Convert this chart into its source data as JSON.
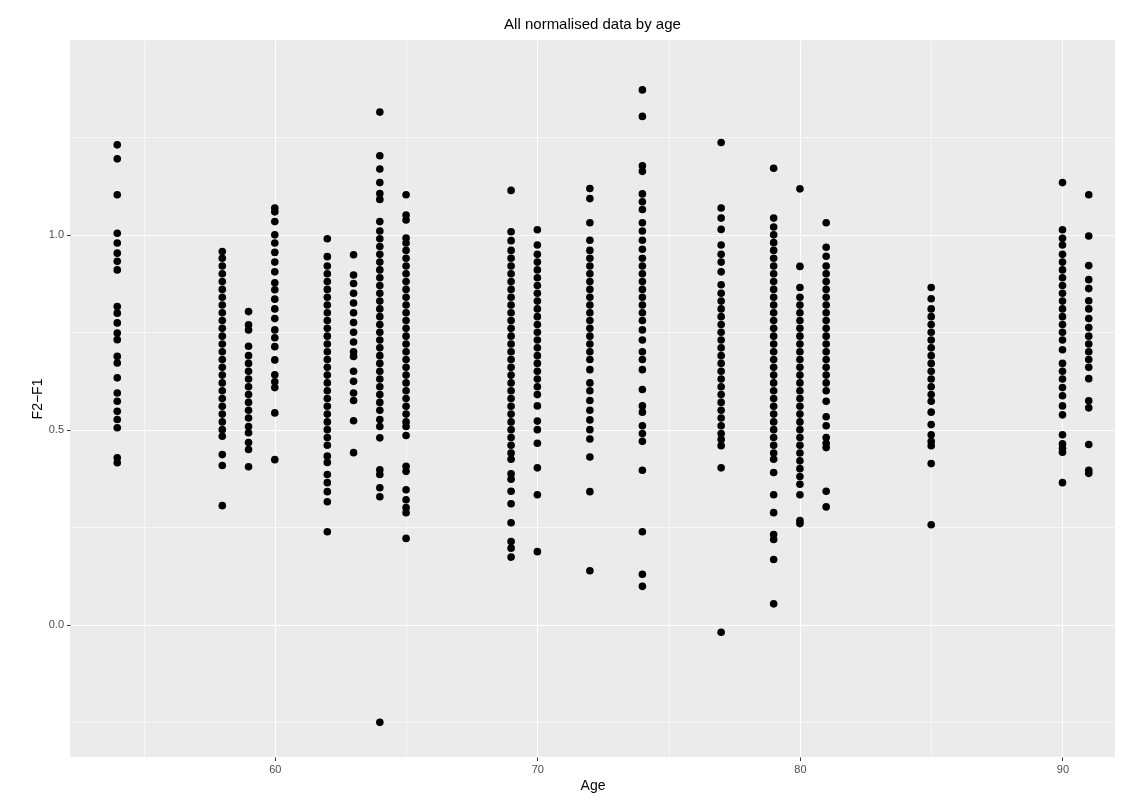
{
  "chart_data": {
    "type": "scatter",
    "title": "All normalised data by age",
    "xlabel": "Age",
    "ylabel": "F2−F1",
    "xlim": [
      52.2,
      92.0
    ],
    "ylim": [
      -0.34,
      1.5
    ],
    "xticks": [
      60,
      70,
      80,
      90
    ],
    "yticks": [
      {
        "value": 0,
        "label": "0.0"
      },
      0.5,
      {
        "value": 1,
        "label": "1.0"
      }
    ],
    "grid": true,
    "marker": "circle",
    "series": [
      {
        "color": "#000000",
        "x": [
          54,
          54,
          54,
          54,
          54,
          54,
          54,
          54,
          54,
          54,
          54,
          54,
          54,
          54,
          54,
          54,
          54,
          54,
          54,
          54,
          54,
          54,
          54
        ],
        "values": [
          1.231,
          1.195,
          1.103,
          1.004,
          0.979,
          0.953,
          0.932,
          0.91,
          0.816,
          0.799,
          0.774,
          0.748,
          0.731,
          0.688,
          0.671,
          0.633,
          0.594,
          0.573,
          0.547,
          0.526,
          0.505,
          0.428,
          0.415
        ]
      },
      {
        "color": "#000000",
        "x": [
          58,
          58,
          58,
          58,
          58,
          58,
          58,
          58,
          58,
          58,
          58,
          58,
          58,
          58,
          58,
          58,
          58,
          58,
          58,
          58,
          58,
          58,
          58,
          58,
          58,
          58,
          58,
          58
        ],
        "values": [
          0.957,
          0.94,
          0.92,
          0.9,
          0.88,
          0.86,
          0.84,
          0.82,
          0.8,
          0.78,
          0.76,
          0.74,
          0.72,
          0.7,
          0.68,
          0.66,
          0.64,
          0.62,
          0.6,
          0.58,
          0.56,
          0.54,
          0.52,
          0.5,
          0.483,
          0.436,
          0.408,
          0.305
        ]
      },
      {
        "color": "#000000",
        "x": [
          59,
          59,
          59,
          59,
          59,
          59,
          59,
          59,
          59,
          59,
          59,
          59,
          59,
          59,
          59,
          59,
          59,
          59
        ],
        "values": [
          0.803,
          0.769,
          0.756,
          0.714,
          0.69,
          0.67,
          0.65,
          0.63,
          0.61,
          0.59,
          0.57,
          0.55,
          0.53,
          0.508,
          0.492,
          0.467,
          0.449,
          0.405
        ]
      },
      {
        "color": "#000000",
        "x": [
          60,
          60,
          60,
          60,
          60,
          60,
          60,
          60,
          60,
          60,
          60,
          60,
          60,
          60,
          60,
          60,
          60,
          60,
          60,
          60,
          60,
          60
        ],
        "values": [
          1.069,
          1.059,
          1.034,
          1.0,
          0.979,
          0.955,
          0.93,
          0.905,
          0.877,
          0.859,
          0.835,
          0.81,
          0.785,
          0.756,
          0.736,
          0.713,
          0.679,
          0.641,
          0.623,
          0.608,
          0.543,
          0.423
        ]
      },
      {
        "color": "#000000",
        "x": [
          62,
          62,
          62,
          62,
          62,
          62,
          62,
          62,
          62,
          62,
          62,
          62,
          62,
          62,
          62,
          62,
          62,
          62,
          62,
          62,
          62,
          62,
          62,
          62,
          62,
          62,
          62,
          62,
          62,
          62,
          62,
          62,
          62
        ],
        "values": [
          0.99,
          0.944,
          0.92,
          0.9,
          0.88,
          0.86,
          0.84,
          0.82,
          0.8,
          0.78,
          0.76,
          0.74,
          0.72,
          0.7,
          0.68,
          0.66,
          0.64,
          0.62,
          0.6,
          0.58,
          0.56,
          0.54,
          0.52,
          0.5,
          0.48,
          0.46,
          0.432,
          0.416,
          0.385,
          0.364,
          0.341,
          0.315,
          0.238
        ]
      },
      {
        "color": "#000000",
        "x": [
          63,
          63,
          63,
          63,
          63,
          63,
          63,
          63,
          63,
          63,
          63,
          63,
          63,
          63,
          63,
          63,
          63
        ],
        "values": [
          0.949,
          0.897,
          0.875,
          0.85,
          0.825,
          0.8,
          0.775,
          0.75,
          0.725,
          0.7,
          0.688,
          0.65,
          0.624,
          0.594,
          0.575,
          0.523,
          0.441
        ]
      },
      {
        "color": "#000000",
        "x": [
          64,
          64,
          64,
          64,
          64,
          64,
          64,
          64,
          64,
          64,
          64,
          64,
          64,
          64,
          64,
          64,
          64,
          64,
          64,
          64,
          64,
          64,
          64,
          64,
          64,
          64,
          64,
          64,
          64,
          64,
          64,
          64,
          64,
          64,
          64,
          64,
          64,
          64,
          64
        ],
        "values": [
          1.315,
          1.203,
          1.169,
          1.134,
          1.106,
          1.091,
          1.034,
          1.01,
          0.99,
          0.97,
          0.95,
          0.93,
          0.91,
          0.89,
          0.87,
          0.85,
          0.83,
          0.81,
          0.79,
          0.77,
          0.75,
          0.73,
          0.71,
          0.69,
          0.67,
          0.65,
          0.63,
          0.61,
          0.59,
          0.57,
          0.55,
          0.526,
          0.508,
          0.479,
          0.397,
          0.385,
          0.351,
          0.328,
          -0.251
        ]
      },
      {
        "color": "#000000",
        "x": [
          65,
          65,
          65,
          65,
          65,
          65,
          65,
          65,
          65,
          65,
          65,
          65,
          65,
          65,
          65,
          65,
          65,
          65,
          65,
          65,
          65,
          65,
          65,
          65,
          65,
          65,
          65,
          65,
          65,
          65,
          65,
          65,
          65,
          65,
          65,
          65,
          65
        ],
        "values": [
          1.103,
          1.051,
          1.038,
          0.992,
          0.979,
          0.96,
          0.94,
          0.92,
          0.9,
          0.88,
          0.86,
          0.84,
          0.82,
          0.8,
          0.78,
          0.76,
          0.74,
          0.72,
          0.7,
          0.68,
          0.66,
          0.64,
          0.62,
          0.6,
          0.58,
          0.56,
          0.54,
          0.52,
          0.508,
          0.485,
          0.406,
          0.393,
          0.346,
          0.32,
          0.3,
          0.287,
          0.221
        ]
      },
      {
        "color": "#000000",
        "x": [
          69,
          69,
          69,
          69,
          69,
          69,
          69,
          69,
          69,
          69,
          69,
          69,
          69,
          69,
          69,
          69,
          69,
          69,
          69,
          69,
          69,
          69,
          69,
          69,
          69,
          69,
          69,
          69,
          69,
          69,
          69,
          69,
          69,
          69,
          69,
          69,
          69,
          69,
          69
        ],
        "values": [
          1.114,
          1.008,
          0.985,
          0.96,
          0.94,
          0.92,
          0.9,
          0.88,
          0.86,
          0.84,
          0.82,
          0.8,
          0.78,
          0.76,
          0.74,
          0.72,
          0.7,
          0.68,
          0.66,
          0.64,
          0.62,
          0.6,
          0.58,
          0.56,
          0.54,
          0.52,
          0.5,
          0.48,
          0.46,
          0.44,
          0.424,
          0.387,
          0.373,
          0.342,
          0.31,
          0.261,
          0.213,
          0.196,
          0.173
        ]
      },
      {
        "color": "#000000",
        "x": [
          70,
          70,
          70,
          70,
          70,
          70,
          70,
          70,
          70,
          70,
          70,
          70,
          70,
          70,
          70,
          70,
          70,
          70,
          70,
          70,
          70,
          70,
          70,
          70,
          70,
          70,
          70,
          70
        ],
        "values": [
          1.013,
          0.974,
          0.95,
          0.93,
          0.91,
          0.89,
          0.87,
          0.85,
          0.83,
          0.81,
          0.79,
          0.77,
          0.75,
          0.73,
          0.71,
          0.69,
          0.67,
          0.65,
          0.63,
          0.61,
          0.59,
          0.561,
          0.522,
          0.5,
          0.465,
          0.402,
          0.333,
          0.187
        ]
      },
      {
        "color": "#000000",
        "x": [
          72,
          72,
          72,
          72,
          72,
          72,
          72,
          72,
          72,
          72,
          72,
          72,
          72,
          72,
          72,
          72,
          72,
          72,
          72,
          72,
          72,
          72,
          72,
          72,
          72,
          72,
          72,
          72,
          72,
          72
        ],
        "values": [
          1.119,
          1.093,
          1.031,
          0.986,
          0.96,
          0.94,
          0.92,
          0.9,
          0.88,
          0.86,
          0.84,
          0.82,
          0.8,
          0.78,
          0.76,
          0.74,
          0.72,
          0.7,
          0.68,
          0.654,
          0.62,
          0.6,
          0.575,
          0.55,
          0.525,
          0.5,
          0.476,
          0.43,
          0.341,
          0.138
        ]
      },
      {
        "color": "#000000",
        "x": [
          74,
          74,
          74,
          74,
          74,
          74,
          74,
          74,
          74,
          74,
          74,
          74,
          74,
          74,
          74,
          74,
          74,
          74,
          74,
          74,
          74,
          74,
          74,
          74,
          74,
          74,
          74,
          74,
          74,
          74,
          74,
          74,
          74,
          74,
          74
        ],
        "values": [
          1.372,
          1.304,
          1.177,
          1.163,
          1.105,
          1.085,
          1.065,
          1.031,
          1.01,
          0.986,
          0.963,
          0.94,
          0.92,
          0.9,
          0.88,
          0.86,
          0.84,
          0.82,
          0.8,
          0.78,
          0.756,
          0.73,
          0.7,
          0.68,
          0.654,
          0.603,
          0.561,
          0.545,
          0.51,
          0.49,
          0.47,
          0.396,
          0.238,
          0.129,
          0.098
        ]
      },
      {
        "color": "#000000",
        "x": [
          77,
          77,
          77,
          77,
          77,
          77,
          77,
          77,
          77,
          77,
          77,
          77,
          77,
          77,
          77,
          77,
          77,
          77,
          77,
          77,
          77,
          77,
          77,
          77,
          77,
          77,
          77,
          77,
          77,
          77,
          77,
          77
        ],
        "values": [
          1.237,
          1.069,
          1.043,
          1.014,
          0.974,
          0.95,
          0.93,
          0.905,
          0.872,
          0.85,
          0.83,
          0.81,
          0.79,
          0.77,
          0.75,
          0.73,
          0.71,
          0.69,
          0.67,
          0.65,
          0.63,
          0.61,
          0.59,
          0.57,
          0.55,
          0.53,
          0.51,
          0.49,
          0.475,
          0.459,
          0.402,
          -0.02
        ]
      },
      {
        "color": "#000000",
        "x": [
          79,
          79,
          79,
          79,
          79,
          79,
          79,
          79,
          79,
          79,
          79,
          79,
          79,
          79,
          79,
          79,
          79,
          79,
          79,
          79,
          79,
          79,
          79,
          79,
          79,
          79,
          79,
          79,
          79,
          79,
          79,
          79,
          79,
          79,
          79,
          79,
          79,
          79,
          79,
          79
        ],
        "values": [
          1.171,
          1.043,
          1.02,
          1.0,
          0.98,
          0.96,
          0.94,
          0.92,
          0.9,
          0.88,
          0.86,
          0.84,
          0.82,
          0.8,
          0.78,
          0.76,
          0.74,
          0.72,
          0.7,
          0.68,
          0.66,
          0.64,
          0.62,
          0.6,
          0.58,
          0.56,
          0.54,
          0.52,
          0.5,
          0.48,
          0.46,
          0.44,
          0.424,
          0.39,
          0.333,
          0.287,
          0.231,
          0.218,
          0.167,
          0.053
        ]
      },
      {
        "color": "#000000",
        "x": [
          80,
          80,
          80,
          80,
          80,
          80,
          80,
          80,
          80,
          80,
          80,
          80,
          80,
          80,
          80,
          80,
          80,
          80,
          80,
          80,
          80,
          80,
          80,
          80,
          80,
          80,
          80,
          80,
          80,
          80,
          80
        ],
        "values": [
          1.118,
          0.919,
          0.865,
          0.84,
          0.82,
          0.8,
          0.78,
          0.76,
          0.74,
          0.72,
          0.7,
          0.68,
          0.66,
          0.64,
          0.62,
          0.6,
          0.58,
          0.56,
          0.54,
          0.52,
          0.5,
          0.48,
          0.46,
          0.44,
          0.42,
          0.4,
          0.38,
          0.36,
          0.333,
          0.267,
          0.259
        ]
      },
      {
        "color": "#000000",
        "x": [
          81,
          81,
          81,
          81,
          81,
          81,
          81,
          81,
          81,
          81,
          81,
          81,
          81,
          81,
          81,
          81,
          81,
          81,
          81,
          81,
          81,
          81,
          81,
          81,
          81,
          81,
          81,
          81
        ],
        "values": [
          1.031,
          0.968,
          0.945,
          0.92,
          0.9,
          0.88,
          0.86,
          0.84,
          0.82,
          0.8,
          0.78,
          0.76,
          0.74,
          0.72,
          0.7,
          0.68,
          0.66,
          0.64,
          0.62,
          0.6,
          0.573,
          0.533,
          0.51,
          0.48,
          0.465,
          0.454,
          0.342,
          0.302
        ]
      },
      {
        "color": "#000000",
        "x": [
          85,
          85,
          85,
          85,
          85,
          85,
          85,
          85,
          85,
          85,
          85,
          85,
          85,
          85,
          85,
          85,
          85,
          85,
          85,
          85,
          85,
          85
        ],
        "values": [
          0.865,
          0.836,
          0.81,
          0.79,
          0.77,
          0.75,
          0.73,
          0.71,
          0.69,
          0.67,
          0.65,
          0.63,
          0.61,
          0.59,
          0.573,
          0.545,
          0.513,
          0.487,
          0.47,
          0.459,
          0.413,
          0.256
        ]
      },
      {
        "color": "#000000",
        "x": [
          90,
          90,
          90,
          90,
          90,
          90,
          90,
          90,
          90,
          90,
          90,
          90,
          90,
          90,
          90,
          90,
          90,
          90,
          90,
          90,
          90,
          90,
          90,
          90,
          90,
          90,
          90,
          90,
          90
        ],
        "values": [
          1.134,
          1.013,
          0.991,
          0.974,
          0.95,
          0.93,
          0.91,
          0.89,
          0.87,
          0.85,
          0.83,
          0.81,
          0.79,
          0.77,
          0.75,
          0.73,
          0.705,
          0.67,
          0.65,
          0.63,
          0.608,
          0.587,
          0.561,
          0.538,
          0.487,
          0.464,
          0.452,
          0.442,
          0.364
        ]
      },
      {
        "color": "#000000",
        "x": [
          91,
          91,
          91,
          91,
          91,
          91,
          91,
          91,
          91,
          91,
          91,
          91,
          91,
          91,
          91,
          91,
          91,
          91,
          91,
          91
        ],
        "values": [
          1.103,
          0.997,
          0.921,
          0.885,
          0.862,
          0.831,
          0.81,
          0.785,
          0.762,
          0.74,
          0.72,
          0.7,
          0.68,
          0.66,
          0.631,
          0.574,
          0.556,
          0.462,
          0.396,
          0.388
        ]
      }
    ]
  }
}
